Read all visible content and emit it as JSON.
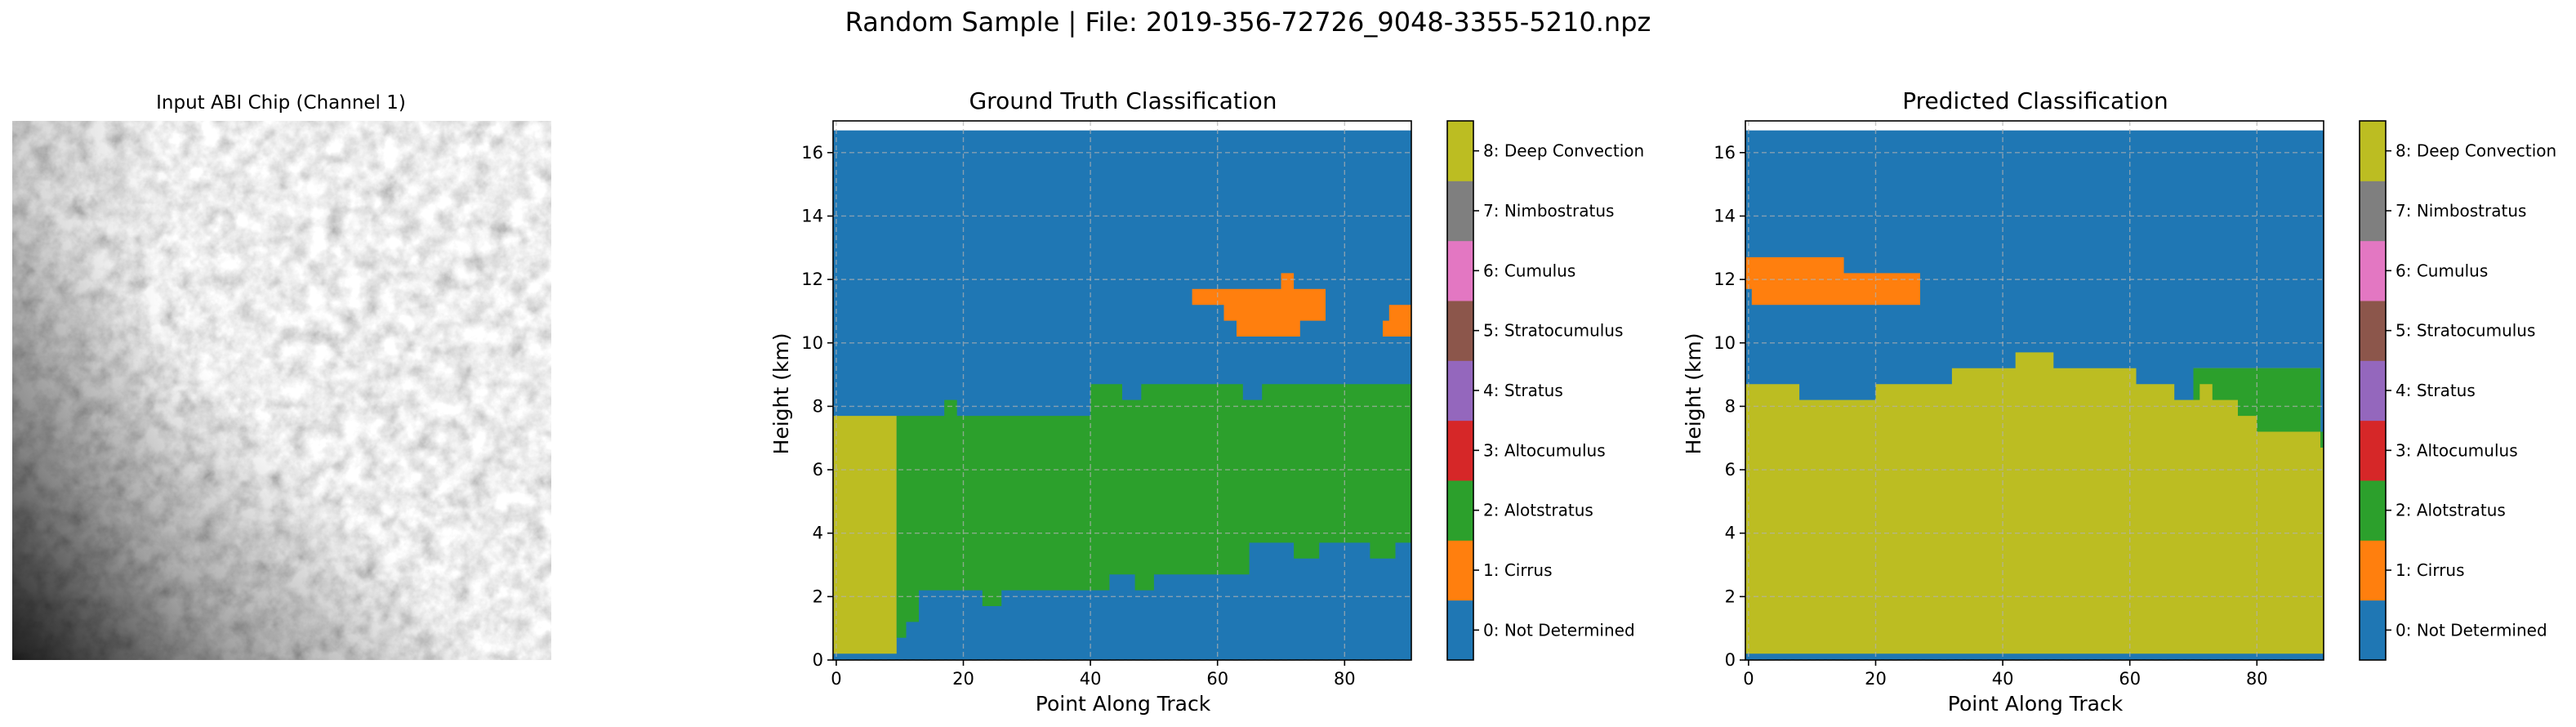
{
  "figure": {
    "title": "Random Sample | File: 2019-356-72726_9048-3355-5210.npz"
  },
  "input_panel": {
    "title": "Input ABI Chip (Channel 1)"
  },
  "colors": {
    "classes": [
      "#1f77b4",
      "#ff7f0e",
      "#2ca02c",
      "#d62728",
      "#9467bd",
      "#8c564b",
      "#e377c2",
      "#7f7f7f",
      "#bcbd22",
      "#17becf"
    ]
  },
  "chart_data": [
    {
      "type": "heatmap",
      "title": "Ground Truth Classification",
      "xlabel": "Point Along Track",
      "ylabel": "Height (km)",
      "xlim": [
        -0.5,
        90.5
      ],
      "ylim": [
        0,
        17
      ],
      "xticks": [
        0,
        20,
        40,
        60,
        80
      ],
      "yticks": [
        0,
        2,
        4,
        6,
        8,
        10,
        12,
        14,
        16
      ],
      "grid": true,
      "background_class": 0,
      "data_top_km": 16.7,
      "regions": [
        {
          "class": 8,
          "polygon": [
            [
              -0.5,
              0.2
            ],
            [
              -0.5,
              7.7
            ],
            [
              9.5,
              7.7
            ],
            [
              9.5,
              0.2
            ]
          ]
        },
        {
          "class": 2,
          "polygon": [
            [
              9.5,
              0.7
            ],
            [
              9.5,
              7.7
            ],
            [
              17,
              7.7
            ],
            [
              17,
              8.2
            ],
            [
              19,
              8.2
            ],
            [
              19,
              7.7
            ],
            [
              40,
              7.7
            ],
            [
              40,
              8.7
            ],
            [
              45,
              8.7
            ],
            [
              45,
              8.2
            ],
            [
              48,
              8.2
            ],
            [
              48,
              8.7
            ],
            [
              64,
              8.7
            ],
            [
              64,
              8.2
            ],
            [
              67,
              8.2
            ],
            [
              67,
              8.7
            ],
            [
              90.5,
              8.7
            ],
            [
              90.5,
              3.7
            ],
            [
              88,
              3.7
            ],
            [
              88,
              3.2
            ],
            [
              84,
              3.2
            ],
            [
              84,
              3.7
            ],
            [
              76,
              3.7
            ],
            [
              76,
              3.2
            ],
            [
              72,
              3.2
            ],
            [
              72,
              3.7
            ],
            [
              65,
              3.7
            ],
            [
              65,
              2.7
            ],
            [
              50,
              2.7
            ],
            [
              50,
              2.2
            ],
            [
              47,
              2.2
            ],
            [
              47,
              2.7
            ],
            [
              43,
              2.7
            ],
            [
              43,
              2.2
            ],
            [
              26,
              2.2
            ],
            [
              26,
              1.7
            ],
            [
              23,
              1.7
            ],
            [
              23,
              2.2
            ],
            [
              13,
              2.2
            ],
            [
              13,
              1.2
            ],
            [
              11,
              1.2
            ],
            [
              11,
              0.7
            ]
          ]
        },
        {
          "class": 1,
          "polygon": [
            [
              56,
              11.2
            ],
            [
              56,
              11.7
            ],
            [
              70,
              11.7
            ],
            [
              70,
              12.2
            ],
            [
              72,
              12.2
            ],
            [
              72,
              11.7
            ],
            [
              77,
              11.7
            ],
            [
              77,
              10.7
            ],
            [
              73,
              10.7
            ],
            [
              73,
              10.2
            ],
            [
              63,
              10.2
            ],
            [
              63,
              10.7
            ],
            [
              61,
              10.7
            ],
            [
              61,
              11.2
            ]
          ]
        },
        {
          "class": 1,
          "polygon": [
            [
              86,
              10.2
            ],
            [
              86,
              10.7
            ],
            [
              87,
              10.7
            ],
            [
              87,
              11.2
            ],
            [
              90.5,
              11.2
            ],
            [
              90.5,
              10.2
            ]
          ]
        }
      ],
      "legend": [
        "0: Not Determined",
        "1: Cirrus",
        "2: Alotstratus",
        "3: Altocumulus",
        "4: Stratus",
        "5: Stratocumulus",
        "6: Cumulus",
        "7: Nimbostratus",
        "8: Deep Convection"
      ]
    },
    {
      "type": "heatmap",
      "title": "Predicted Classification",
      "xlabel": "Point Along Track",
      "ylabel": "Height (km)",
      "xlim": [
        -0.5,
        90.5
      ],
      "ylim": [
        0,
        17
      ],
      "xticks": [
        0,
        20,
        40,
        60,
        80
      ],
      "yticks": [
        0,
        2,
        4,
        6,
        8,
        10,
        12,
        14,
        16
      ],
      "grid": true,
      "background_class": 0,
      "data_top_km": 16.7,
      "regions": [
        {
          "class": 8,
          "polygon": [
            [
              -0.5,
              0.2
            ],
            [
              -0.5,
              8.7
            ],
            [
              8,
              8.7
            ],
            [
              8,
              8.2
            ],
            [
              20,
              8.2
            ],
            [
              20,
              8.7
            ],
            [
              32,
              8.7
            ],
            [
              32,
              9.2
            ],
            [
              42,
              9.2
            ],
            [
              42,
              9.7
            ],
            [
              48,
              9.7
            ],
            [
              48,
              9.2
            ],
            [
              61,
              9.2
            ],
            [
              61,
              8.7
            ],
            [
              67,
              8.7
            ],
            [
              67,
              8.2
            ],
            [
              70,
              8.2
            ],
            [
              70,
              9.2
            ],
            [
              90,
              9.2
            ],
            [
              90,
              6.7
            ],
            [
              90.5,
              6.7
            ],
            [
              90.5,
              0.2
            ]
          ]
        },
        {
          "class": 2,
          "polygon": [
            [
              70,
              8.2
            ],
            [
              70,
              9.2
            ],
            [
              90,
              9.2
            ],
            [
              90,
              6.7
            ],
            [
              90.5,
              6.7
            ],
            [
              90.5,
              7.2
            ],
            [
              80,
              7.2
            ],
            [
              80,
              7.7
            ],
            [
              77,
              7.7
            ],
            [
              77,
              8.2
            ],
            [
              73,
              8.2
            ],
            [
              73,
              8.7
            ],
            [
              71,
              8.7
            ],
            [
              71,
              8.2
            ]
          ]
        },
        {
          "class": 1,
          "polygon": [
            [
              -0.5,
              11.7
            ],
            [
              -0.5,
              12.7
            ],
            [
              15,
              12.7
            ],
            [
              15,
              12.2
            ],
            [
              27,
              12.2
            ],
            [
              27,
              11.2
            ],
            [
              0.5,
              11.2
            ],
            [
              0.5,
              11.7
            ]
          ]
        }
      ],
      "legend": [
        "0: Not Determined",
        "1: Cirrus",
        "2: Alotstratus",
        "3: Altocumulus",
        "4: Stratus",
        "5: Stratocumulus",
        "6: Cumulus",
        "7: Nimbostratus",
        "8: Deep Convection"
      ]
    }
  ]
}
